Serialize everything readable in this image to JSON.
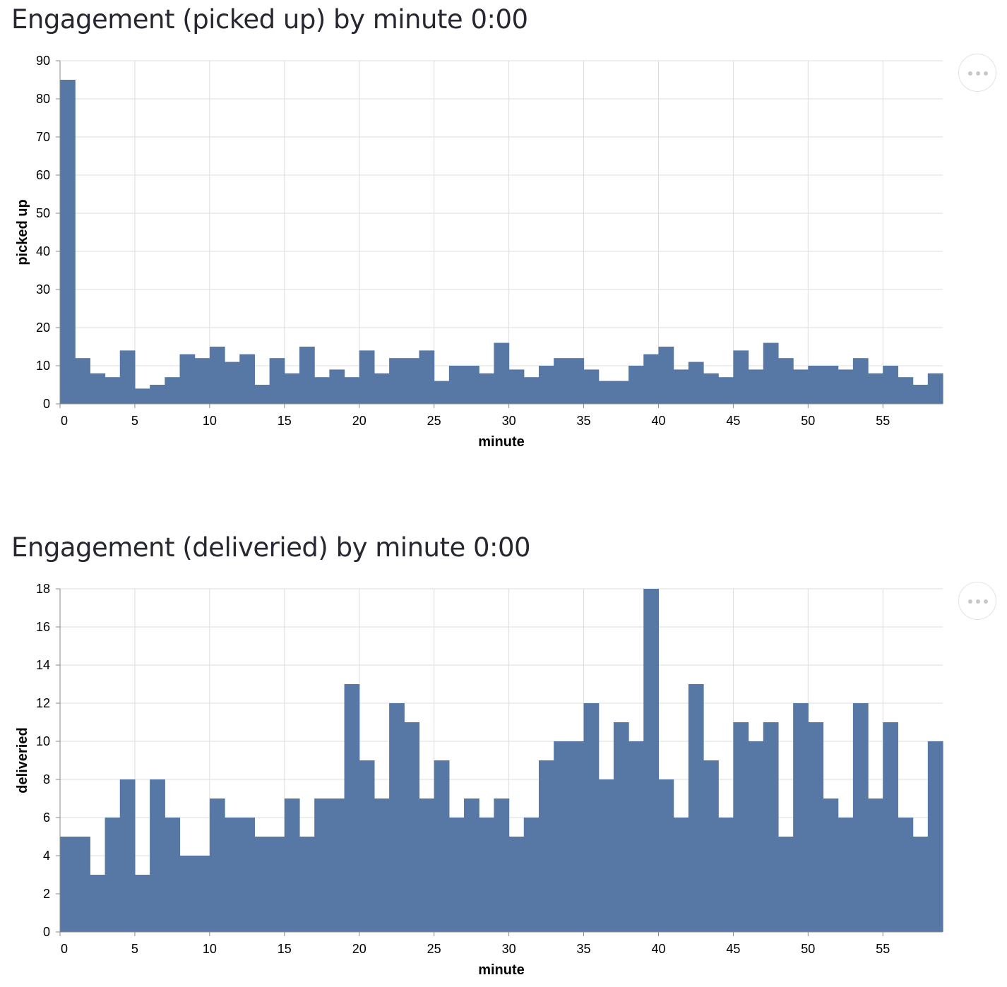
{
  "charts": [
    {
      "title": "Engagement (picked up) by minute 0:00",
      "menu_icon": "ellipsis-icon"
    },
    {
      "title": "Engagement (deliveried) by minute 0:00",
      "menu_icon": "ellipsis-icon"
    }
  ],
  "chart_data": [
    {
      "type": "bar",
      "title": "Engagement (picked up) by minute 0:00",
      "xlabel": "minute",
      "ylabel": "picked up",
      "xlim": [
        0,
        59
      ],
      "ylim": [
        0,
        90
      ],
      "x_ticks": [
        0,
        5,
        10,
        15,
        20,
        25,
        30,
        35,
        40,
        45,
        50,
        55
      ],
      "y_ticks": [
        0,
        10,
        20,
        30,
        40,
        50,
        60,
        70,
        80,
        90
      ],
      "grid": true,
      "color": "#5778a4",
      "x": [
        0,
        1,
        2,
        3,
        4,
        5,
        6,
        7,
        8,
        9,
        10,
        11,
        12,
        13,
        14,
        15,
        16,
        17,
        18,
        19,
        20,
        21,
        22,
        23,
        24,
        25,
        26,
        27,
        28,
        29,
        30,
        31,
        32,
        33,
        34,
        35,
        36,
        37,
        38,
        39,
        40,
        41,
        42,
        43,
        44,
        45,
        46,
        47,
        48,
        49,
        50,
        51,
        52,
        53,
        54,
        55,
        56,
        57,
        58
      ],
      "values": [
        85,
        12,
        8,
        7,
        14,
        4,
        5,
        7,
        13,
        12,
        15,
        11,
        13,
        5,
        12,
        8,
        15,
        7,
        9,
        7,
        14,
        8,
        12,
        12,
        14,
        6,
        10,
        10,
        8,
        16,
        9,
        7,
        10,
        12,
        12,
        9,
        6,
        6,
        10,
        13,
        15,
        9,
        11,
        8,
        7,
        14,
        9,
        16,
        12,
        9,
        10,
        10,
        9,
        12,
        8,
        10,
        7,
        5,
        8
      ]
    },
    {
      "type": "bar",
      "title": "Engagement (deliveried) by minute 0:00",
      "xlabel": "minute",
      "ylabel": "deliveried",
      "xlim": [
        0,
        59
      ],
      "ylim": [
        0,
        18
      ],
      "x_ticks": [
        0,
        5,
        10,
        15,
        20,
        25,
        30,
        35,
        40,
        45,
        50,
        55
      ],
      "y_ticks": [
        0,
        2,
        4,
        6,
        8,
        10,
        12,
        14,
        16,
        18
      ],
      "grid": true,
      "color": "#5778a4",
      "x": [
        0,
        1,
        2,
        3,
        4,
        5,
        6,
        7,
        8,
        9,
        10,
        11,
        12,
        13,
        14,
        15,
        16,
        17,
        18,
        19,
        20,
        21,
        22,
        23,
        24,
        25,
        26,
        27,
        28,
        29,
        30,
        31,
        32,
        33,
        34,
        35,
        36,
        37,
        38,
        39,
        40,
        41,
        42,
        43,
        44,
        45,
        46,
        47,
        48,
        49,
        50,
        51,
        52,
        53,
        54,
        55,
        56,
        57,
        58
      ],
      "values": [
        5,
        5,
        3,
        6,
        8,
        3,
        8,
        6,
        4,
        4,
        7,
        6,
        6,
        5,
        5,
        7,
        5,
        7,
        7,
        13,
        9,
        7,
        12,
        11,
        7,
        9,
        6,
        7,
        6,
        7,
        5,
        6,
        9,
        10,
        10,
        12,
        8,
        11,
        10,
        18,
        8,
        6,
        13,
        9,
        6,
        11,
        10,
        11,
        5,
        12,
        11,
        7,
        6,
        12,
        7,
        11,
        6,
        5,
        10
      ]
    }
  ]
}
